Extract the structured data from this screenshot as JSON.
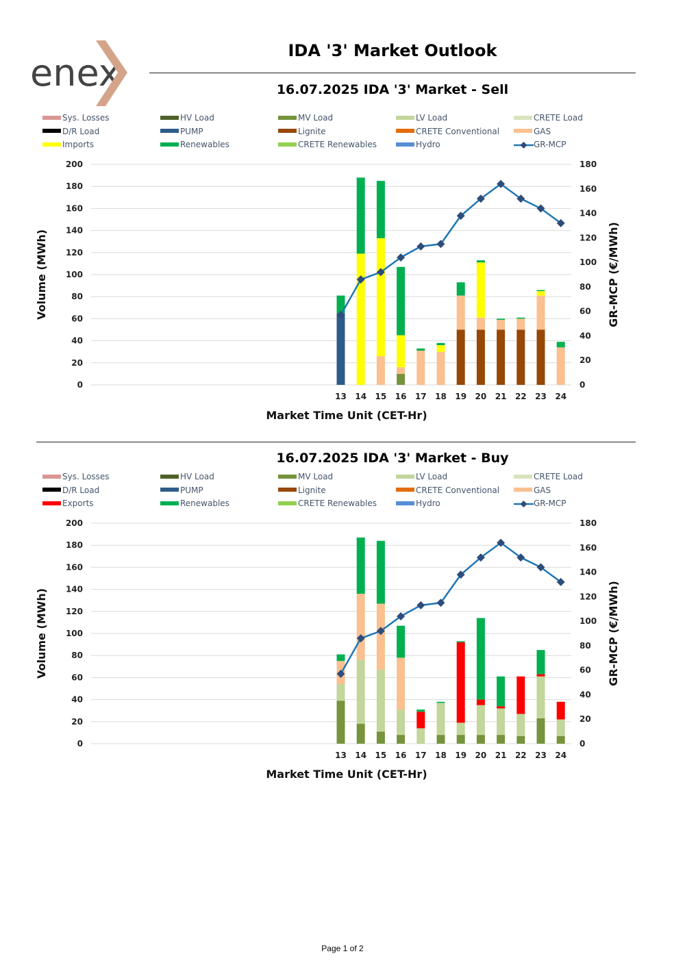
{
  "header": {
    "logo_text": "enex",
    "main_title": "IDA '3' Market Outlook"
  },
  "colors": {
    "Sys. Losses": "#d99694",
    "HV Load": "#4f6228",
    "MV Load": "#77933c",
    "LV Load": "#c3d69b",
    "CRETE Load": "#d7e4bd",
    "D/R Load": "#000000",
    "PUMP": "#2e5c8a",
    "Lignite": "#974706",
    "CRETE Conventional": "#e46c0a",
    "GAS": "#fac090",
    "Imports": "#ffff00",
    "Exports": "#ff0000",
    "Renewables": "#00b050",
    "CRETE Renewables": "#92d050",
    "Hydro": "#558ed5",
    "GR-MCP": "#1f77b4",
    "GR-MCP marker": "#2e4d7b"
  },
  "chart_data": [
    {
      "type": "bar",
      "title": "16.07.2025  IDA '3' Market - Sell",
      "xlabel": "Market Time Unit (CET-Hr)",
      "ylabel": "Volume (MWh)",
      "y2label": "GR-MCP (€/MWh)",
      "ylim": [
        0,
        200
      ],
      "y2lim": [
        0,
        180
      ],
      "yticks": [
        "0",
        "20",
        "40",
        "60",
        "80",
        "100",
        "120",
        "140",
        "160",
        "180",
        "200"
      ],
      "y2ticks": [
        "0",
        "20",
        "40",
        "60",
        "80",
        "100",
        "120",
        "140",
        "160",
        "180"
      ],
      "categories": [
        "13",
        "14",
        "15",
        "16",
        "17",
        "18",
        "19",
        "20",
        "21",
        "22",
        "23",
        "24"
      ],
      "legend": [
        "Sys. Losses",
        "HV Load",
        "MV Load",
        "LV Load",
        "CRETE Load",
        "D/R Load",
        "PUMP",
        "Lignite",
        "CRETE Conventional",
        "GAS",
        "Imports",
        "Renewables",
        "CRETE Renewables",
        "Hydro",
        "GR-MCP"
      ],
      "series": [
        {
          "name": "PUMP",
          "values": [
            65,
            0,
            0,
            0,
            0,
            0,
            0,
            0,
            0,
            0,
            0,
            0
          ]
        },
        {
          "name": "MV Load",
          "values": [
            0,
            0,
            0,
            10,
            0,
            0,
            0,
            0,
            0,
            0,
            0,
            0
          ]
        },
        {
          "name": "Lignite",
          "values": [
            0,
            0,
            0,
            0,
            0,
            0,
            50,
            50,
            50,
            50,
            50,
            0
          ]
        },
        {
          "name": "GAS",
          "values": [
            0,
            0,
            26,
            6,
            31,
            30,
            31,
            11,
            9,
            10,
            31,
            34
          ]
        },
        {
          "name": "Imports",
          "values": [
            0,
            119,
            107,
            29,
            0,
            6,
            0,
            50,
            0,
            0,
            4,
            0
          ]
        },
        {
          "name": "Renewables",
          "values": [
            16,
            69,
            52,
            62,
            2,
            2,
            12,
            2,
            1,
            1,
            1,
            5
          ]
        }
      ],
      "line": {
        "name": "GR-MCP",
        "values": [
          57,
          86,
          92,
          104,
          113,
          115,
          138,
          152,
          164,
          152,
          144,
          132
        ]
      }
    },
    {
      "type": "bar",
      "title": "16.07.2025  IDA '3' Market - Buy",
      "xlabel": "Market Time Unit (CET-Hr)",
      "ylabel": "Volume (MWh)",
      "y2label": "GR-MCP (€/MWh)",
      "ylim": [
        0,
        200
      ],
      "y2lim": [
        0,
        180
      ],
      "yticks": [
        "0",
        "20",
        "40",
        "60",
        "80",
        "100",
        "120",
        "140",
        "160",
        "180",
        "200"
      ],
      "y2ticks": [
        "0",
        "20",
        "40",
        "60",
        "80",
        "100",
        "120",
        "140",
        "160",
        "180"
      ],
      "categories": [
        "13",
        "14",
        "15",
        "16",
        "17",
        "18",
        "19",
        "20",
        "21",
        "22",
        "23",
        "24"
      ],
      "legend": [
        "Sys. Losses",
        "HV Load",
        "MV Load",
        "LV Load",
        "CRETE Load",
        "D/R Load",
        "PUMP",
        "Lignite",
        "CRETE Conventional",
        "GAS",
        "Exports",
        "Renewables",
        "CRETE Renewables",
        "Hydro",
        "GR-MCP"
      ],
      "series": [
        {
          "name": "MV Load",
          "values": [
            39,
            18,
            11,
            8,
            0,
            8,
            8,
            8,
            8,
            7,
            23,
            7
          ]
        },
        {
          "name": "LV Load",
          "values": [
            15,
            58,
            56,
            23,
            14,
            29,
            11,
            27,
            24,
            20,
            38,
            15
          ]
        },
        {
          "name": "GAS",
          "values": [
            21,
            60,
            60,
            47,
            0,
            0,
            0,
            0,
            0,
            0,
            0,
            0
          ]
        },
        {
          "name": "Exports",
          "values": [
            0,
            0,
            0,
            0,
            15,
            0,
            73,
            5,
            2,
            34,
            2,
            16
          ]
        },
        {
          "name": "Renewables",
          "values": [
            6,
            51,
            57,
            29,
            2,
            1,
            1,
            74,
            27,
            0,
            22,
            0
          ]
        }
      ],
      "line": {
        "name": "GR-MCP",
        "values": [
          57,
          86,
          92,
          104,
          113,
          115,
          138,
          152,
          164,
          152,
          144,
          132
        ]
      }
    }
  ],
  "footer": {
    "page": "Page 1 of 2"
  }
}
